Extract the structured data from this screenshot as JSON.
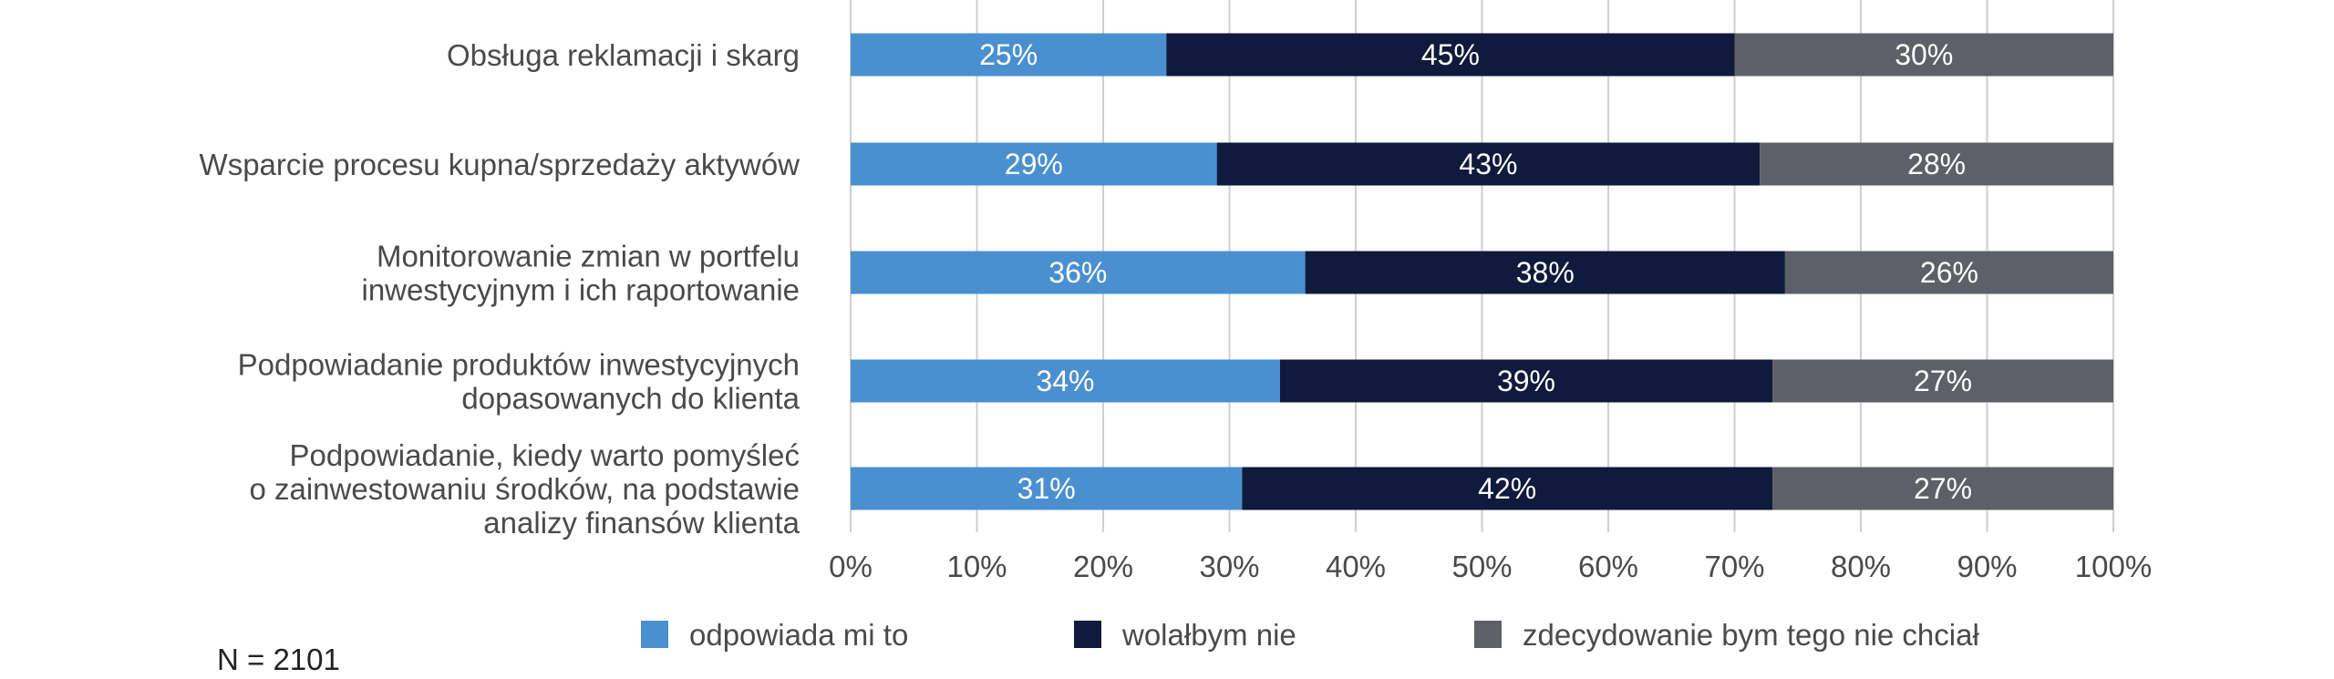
{
  "chart_data": {
    "type": "bar",
    "orientation": "horizontal",
    "stacked": true,
    "categories": [
      [
        "Obsługa reklamacji i skarg"
      ],
      [
        "Wsparcie procesu kupna/sprzedaży aktywów"
      ],
      [
        "Monitorowanie zmian w portfelu",
        "inwestycyjnym i ich raportowanie"
      ],
      [
        "Podpowiadanie produktów inwestycyjnych",
        "dopasowanych do klienta"
      ],
      [
        "Podpowiadanie, kiedy warto pomyśleć",
        "o zainwestowaniu środków, na podstawie",
        "analizy finansów klienta"
      ]
    ],
    "series": [
      {
        "name": "odpowiada mi to",
        "color": "#4a90d0",
        "values": [
          25,
          29,
          36,
          34,
          31
        ],
        "labels": [
          "25%",
          "29%",
          "36%",
          "34%",
          "31%"
        ]
      },
      {
        "name": "wolałbym nie",
        "color": "#0f1a3c",
        "values": [
          45,
          43,
          38,
          39,
          42
        ],
        "labels": [
          "45%",
          "43%",
          "38%",
          "39%",
          "42%"
        ]
      },
      {
        "name": "zdecydowanie bym tego nie chciał",
        "color": "#5d6068",
        "values": [
          30,
          28,
          26,
          27,
          27
        ],
        "labels": [
          "30%",
          "28%",
          "26%",
          "27%",
          "27%"
        ]
      }
    ],
    "x_ticks": [
      "0%",
      "10%",
      "20%",
      "30%",
      "40%",
      "50%",
      "60%",
      "70%",
      "80%",
      "90%",
      "100%"
    ],
    "xlim": [
      0,
      100
    ],
    "grid": "vertical",
    "legend": "bottom",
    "note": "N = 2101"
  }
}
